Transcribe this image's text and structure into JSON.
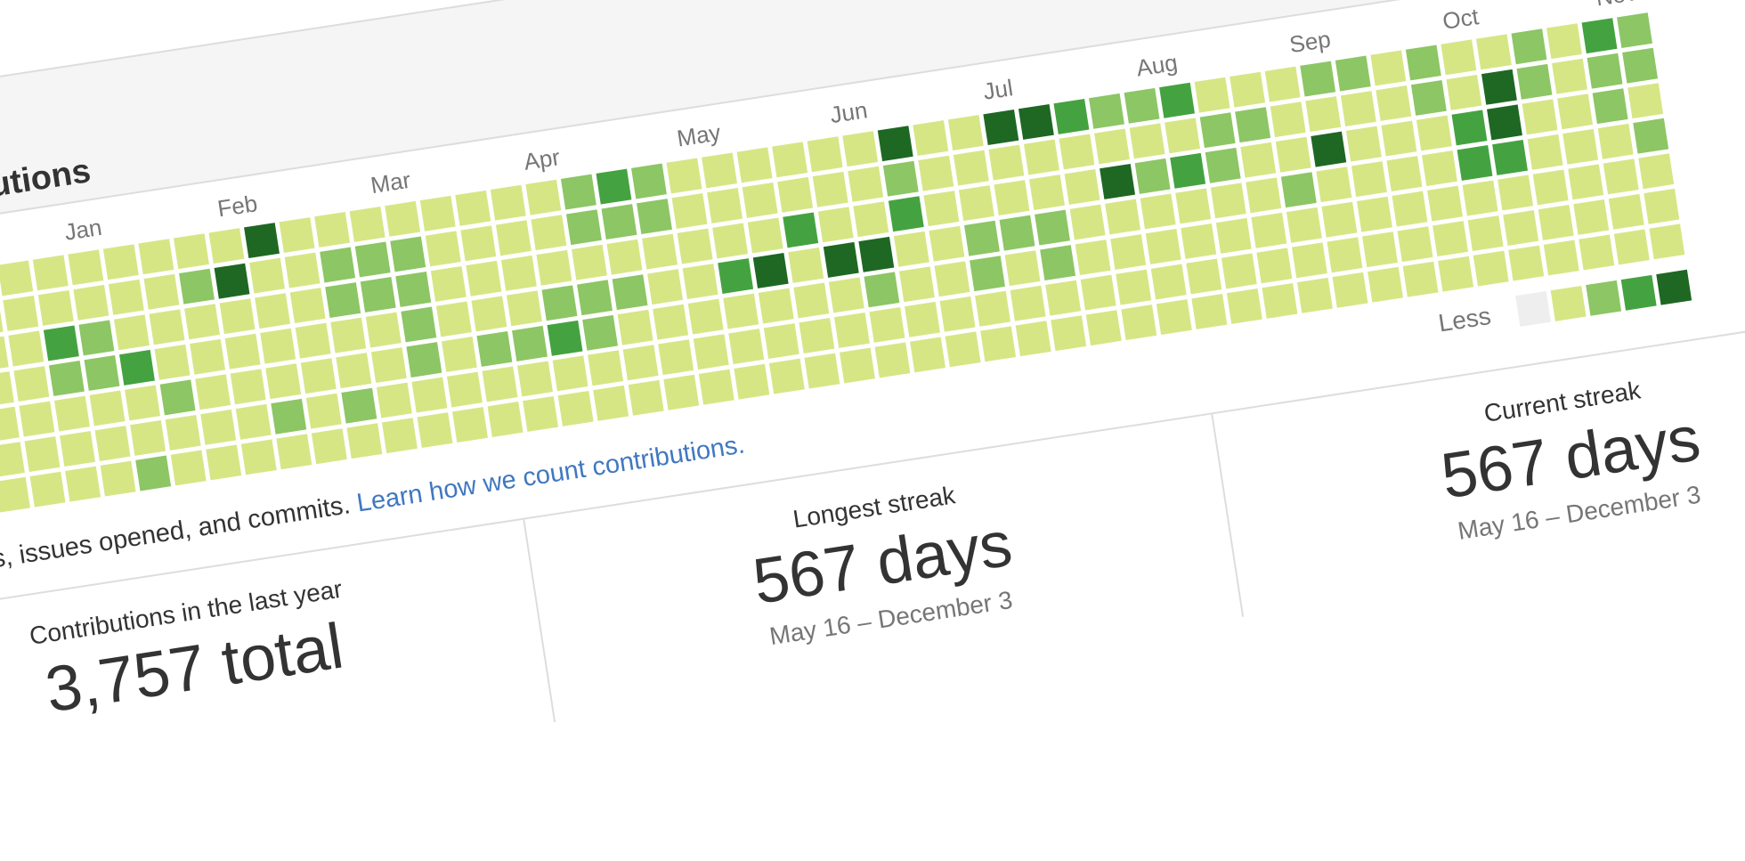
{
  "header": {
    "title": "Contributions"
  },
  "calendar": {
    "months": [
      "Jan",
      "Feb",
      "Mar",
      "Apr",
      "May",
      "Jun",
      "Jul",
      "Aug",
      "Sep",
      "Oct",
      "Nov"
    ],
    "colors": [
      "#eeeeee",
      "#d6e685",
      "#8cc665",
      "#44a340",
      "#1e6823"
    ],
    "weeks": [
      [
        1,
        1,
        1,
        1,
        1,
        1,
        1
      ],
      [
        1,
        1,
        1,
        1,
        1,
        1,
        1
      ],
      [
        1,
        1,
        3,
        2,
        1,
        1,
        1
      ],
      [
        1,
        1,
        2,
        2,
        1,
        1,
        1
      ],
      [
        1,
        1,
        1,
        3,
        1,
        1,
        2
      ],
      [
        1,
        1,
        1,
        1,
        2,
        1,
        1
      ],
      [
        1,
        2,
        1,
        1,
        1,
        1,
        1
      ],
      [
        1,
        4,
        1,
        1,
        1,
        1,
        1
      ],
      [
        4,
        1,
        1,
        1,
        1,
        2,
        1
      ],
      [
        1,
        1,
        1,
        1,
        1,
        1,
        1
      ],
      [
        1,
        2,
        2,
        1,
        1,
        2,
        1
      ],
      [
        1,
        2,
        2,
        1,
        1,
        1,
        1
      ],
      [
        1,
        2,
        2,
        2,
        2,
        1,
        1
      ],
      [
        1,
        1,
        1,
        1,
        1,
        1,
        1
      ],
      [
        1,
        1,
        1,
        1,
        2,
        1,
        1
      ],
      [
        1,
        1,
        1,
        1,
        2,
        1,
        1
      ],
      [
        1,
        1,
        1,
        2,
        3,
        1,
        1
      ],
      [
        2,
        2,
        1,
        2,
        2,
        1,
        1
      ],
      [
        3,
        2,
        1,
        2,
        1,
        1,
        1
      ],
      [
        2,
        2,
        1,
        1,
        1,
        1,
        1
      ],
      [
        1,
        1,
        1,
        1,
        1,
        1,
        1
      ],
      [
        1,
        1,
        1,
        3,
        1,
        1,
        1
      ],
      [
        1,
        1,
        1,
        4,
        1,
        1,
        1
      ],
      [
        1,
        1,
        3,
        1,
        1,
        1,
        1
      ],
      [
        1,
        1,
        1,
        4,
        1,
        1,
        1
      ],
      [
        1,
        1,
        1,
        4,
        2,
        1,
        1
      ],
      [
        4,
        2,
        3,
        1,
        1,
        1,
        1
      ],
      [
        1,
        1,
        1,
        1,
        1,
        1,
        1
      ],
      [
        1,
        1,
        1,
        2,
        2,
        1,
        1
      ],
      [
        4,
        1,
        1,
        2,
        1,
        1,
        1
      ],
      [
        4,
        1,
        1,
        2,
        2,
        1,
        1
      ],
      [
        3,
        1,
        1,
        1,
        1,
        1,
        1
      ],
      [
        2,
        1,
        4,
        1,
        1,
        1,
        1
      ],
      [
        2,
        1,
        2,
        1,
        1,
        1,
        1
      ],
      [
        3,
        1,
        3,
        1,
        1,
        1,
        1
      ],
      [
        1,
        2,
        2,
        1,
        1,
        1,
        1
      ],
      [
        1,
        2,
        1,
        1,
        1,
        1,
        1
      ],
      [
        1,
        1,
        1,
        2,
        1,
        1,
        1
      ],
      [
        2,
        1,
        4,
        1,
        1,
        1,
        1
      ],
      [
        2,
        1,
        1,
        1,
        1,
        1,
        1
      ],
      [
        1,
        1,
        1,
        1,
        1,
        1,
        1
      ],
      [
        2,
        2,
        1,
        1,
        1,
        1,
        1
      ],
      [
        1,
        1,
        3,
        3,
        1,
        1,
        1
      ],
      [
        1,
        4,
        4,
        3,
        1,
        1,
        1
      ],
      [
        2,
        2,
        1,
        1,
        1,
        1,
        1
      ],
      [
        1,
        1,
        1,
        1,
        1,
        1,
        1
      ],
      [
        3,
        2,
        2,
        1,
        1,
        1,
        1
      ],
      [
        2,
        2,
        1,
        2,
        1,
        1,
        1
      ]
    ],
    "legend_less": "Less"
  },
  "summary": {
    "text": "Summary of pull requests, issues opened, and commits.",
    "link": "Learn how we count contributions."
  },
  "stats": [
    {
      "label": "Contributions in the last year",
      "value": "3,757 total",
      "range": ""
    },
    {
      "label": "Longest streak",
      "value": "567 days",
      "range": "May 16 – December 3"
    },
    {
      "label": "Current streak",
      "value": "567 days",
      "range": "May 16 – December 3"
    }
  ]
}
